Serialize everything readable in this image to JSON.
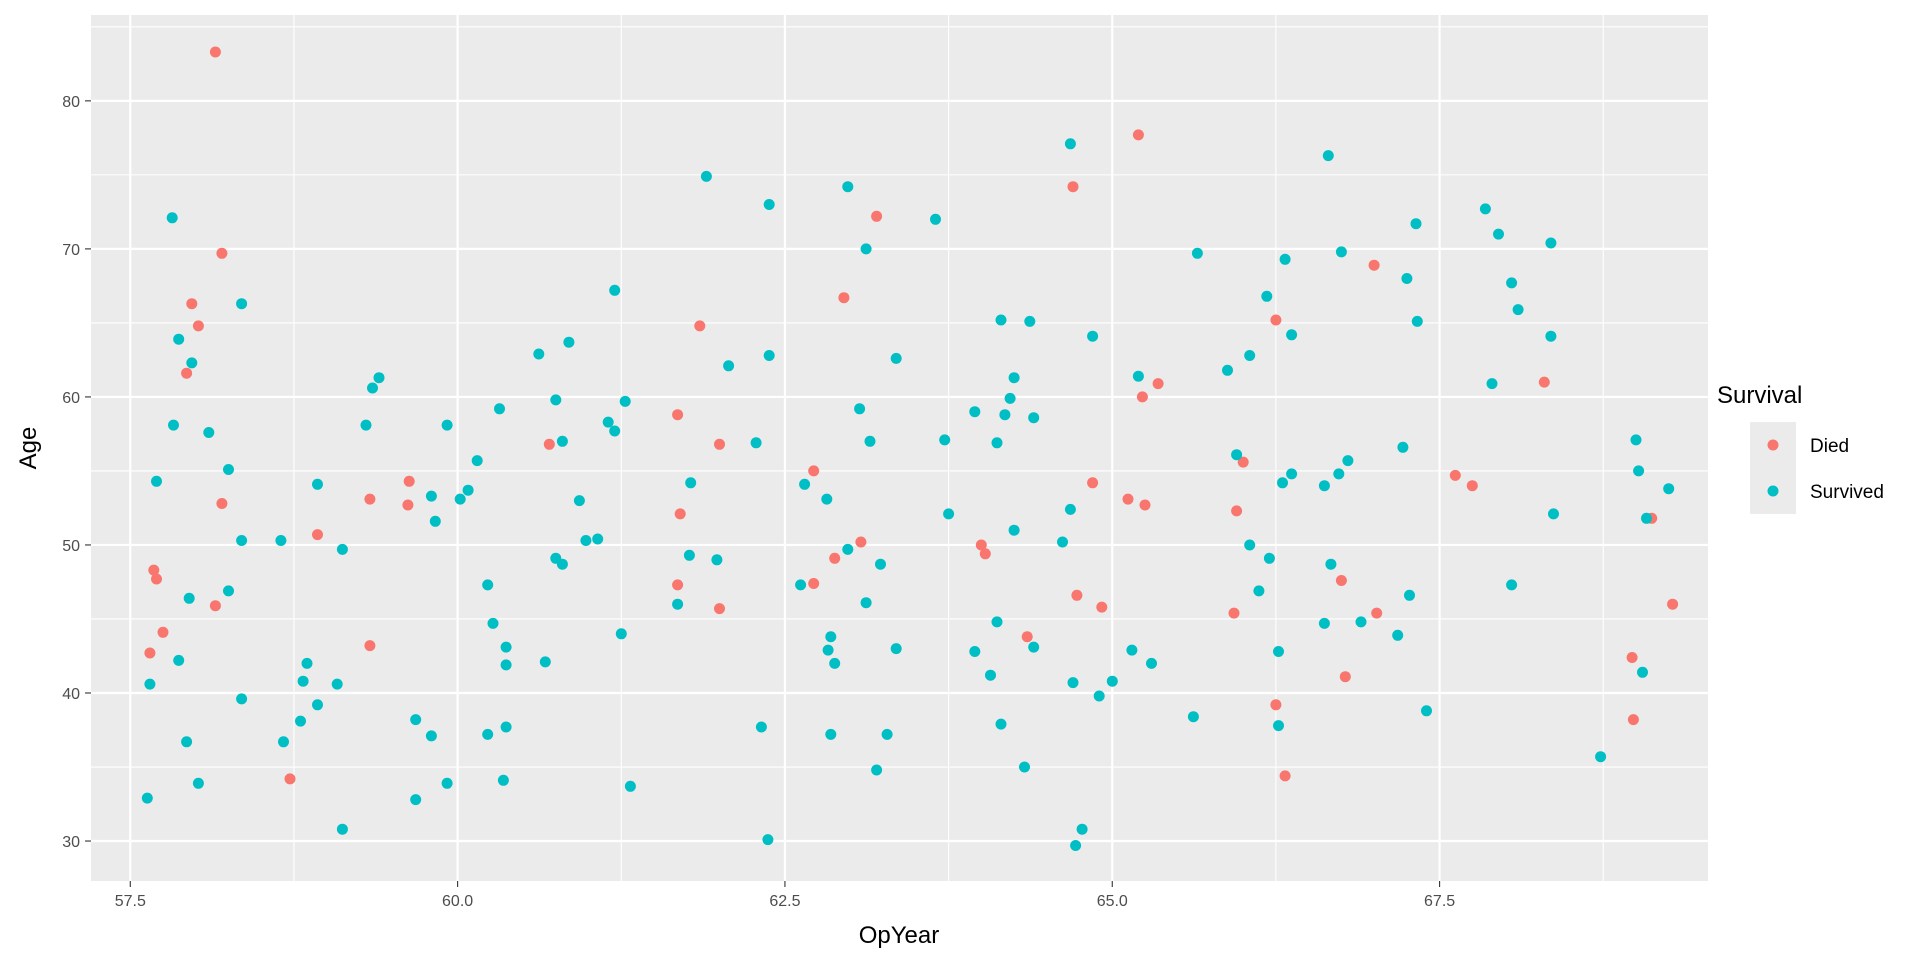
{
  "chart_data": {
    "type": "scatter",
    "xlabel": "OpYear",
    "ylabel": "Age",
    "xlim": [
      57.2,
      69.55
    ],
    "ylim": [
      27.3,
      85.8
    ],
    "x_ticks": [
      57.5,
      60.0,
      62.5,
      65.0,
      67.5
    ],
    "x_tick_labels": [
      "57.5",
      "60.0",
      "62.5",
      "65.0",
      "67.5"
    ],
    "y_ticks": [
      30,
      40,
      50,
      60,
      70,
      80
    ],
    "y_tick_labels": [
      "30",
      "40",
      "50",
      "60",
      "70",
      "80"
    ],
    "grid": true,
    "legend": {
      "title": "Survival",
      "position": "right"
    },
    "series": [
      {
        "name": "Died",
        "color": "#F8766D",
        "points": [
          [
            58.15,
            83.3
          ],
          [
            58.2,
            69.7
          ],
          [
            57.97,
            66.3
          ],
          [
            58.02,
            64.8
          ],
          [
            57.93,
            61.6
          ],
          [
            58.2,
            52.8
          ],
          [
            58.15,
            45.9
          ],
          [
            57.68,
            48.3
          ],
          [
            57.7,
            47.7
          ],
          [
            57.75,
            44.1
          ],
          [
            57.65,
            42.7
          ],
          [
            58.72,
            34.2
          ],
          [
            58.93,
            50.7
          ],
          [
            59.33,
            53.1
          ],
          [
            59.33,
            43.2
          ],
          [
            59.63,
            54.3
          ],
          [
            59.62,
            52.7
          ],
          [
            60.7,
            56.8
          ],
          [
            61.68,
            58.8
          ],
          [
            61.85,
            64.8
          ],
          [
            62.0,
            56.8
          ],
          [
            61.7,
            52.1
          ],
          [
            61.68,
            47.3
          ],
          [
            62.0,
            45.7
          ],
          [
            62.95,
            66.7
          ],
          [
            63.2,
            72.2
          ],
          [
            62.72,
            55.0
          ],
          [
            62.72,
            47.4
          ],
          [
            62.88,
            49.1
          ],
          [
            63.08,
            50.2
          ],
          [
            64.0,
            50.0
          ],
          [
            64.03,
            49.4
          ],
          [
            64.35,
            43.8
          ],
          [
            64.7,
            74.2
          ],
          [
            64.73,
            46.6
          ],
          [
            64.85,
            54.2
          ],
          [
            64.92,
            45.8
          ],
          [
            65.2,
            77.7
          ],
          [
            65.23,
            60.0
          ],
          [
            65.35,
            60.9
          ],
          [
            65.12,
            53.1
          ],
          [
            65.25,
            52.7
          ],
          [
            65.95,
            52.3
          ],
          [
            65.93,
            45.4
          ],
          [
            66.0,
            55.6
          ],
          [
            66.25,
            65.2
          ],
          [
            66.25,
            39.2
          ],
          [
            66.32,
            34.4
          ],
          [
            66.75,
            47.6
          ],
          [
            66.78,
            41.1
          ],
          [
            67.0,
            68.9
          ],
          [
            67.02,
            45.4
          ],
          [
            67.62,
            54.7
          ],
          [
            67.75,
            54.0
          ],
          [
            68.3,
            61.0
          ],
          [
            68.97,
            42.4
          ],
          [
            68.98,
            38.2
          ],
          [
            69.12,
            51.8
          ],
          [
            69.28,
            46.0
          ]
        ]
      },
      {
        "name": "Survived",
        "color": "#00BFC4",
        "points": [
          [
            57.82,
            72.1
          ],
          [
            57.87,
            63.9
          ],
          [
            57.97,
            62.3
          ],
          [
            57.83,
            58.1
          ],
          [
            58.1,
            57.6
          ],
          [
            57.7,
            54.3
          ],
          [
            58.25,
            55.1
          ],
          [
            58.35,
            66.3
          ],
          [
            58.35,
            50.3
          ],
          [
            57.95,
            46.4
          ],
          [
            58.25,
            46.9
          ],
          [
            57.87,
            42.2
          ],
          [
            57.65,
            40.6
          ],
          [
            57.93,
            36.7
          ],
          [
            58.02,
            33.9
          ],
          [
            57.63,
            32.9
          ],
          [
            58.35,
            39.6
          ],
          [
            58.65,
            50.3
          ],
          [
            58.67,
            36.7
          ],
          [
            58.8,
            38.1
          ],
          [
            58.82,
            40.8
          ],
          [
            58.85,
            42.0
          ],
          [
            58.93,
            39.2
          ],
          [
            58.93,
            54.1
          ],
          [
            59.08,
            40.6
          ],
          [
            59.12,
            49.7
          ],
          [
            59.12,
            30.8
          ],
          [
            59.3,
            58.1
          ],
          [
            59.35,
            60.6
          ],
          [
            59.4,
            61.3
          ],
          [
            59.8,
            53.3
          ],
          [
            59.83,
            51.6
          ],
          [
            59.92,
            58.1
          ],
          [
            60.02,
            53.1
          ],
          [
            60.08,
            53.7
          ],
          [
            60.15,
            55.7
          ],
          [
            59.68,
            38.2
          ],
          [
            59.68,
            32.8
          ],
          [
            59.8,
            37.1
          ],
          [
            59.92,
            33.9
          ],
          [
            60.23,
            47.3
          ],
          [
            60.27,
            44.7
          ],
          [
            60.23,
            37.2
          ],
          [
            60.32,
            59.2
          ],
          [
            60.37,
            43.1
          ],
          [
            60.37,
            41.9
          ],
          [
            60.37,
            37.7
          ],
          [
            60.35,
            34.1
          ],
          [
            60.62,
            62.9
          ],
          [
            60.67,
            42.1
          ],
          [
            60.75,
            59.8
          ],
          [
            60.75,
            49.1
          ],
          [
            60.8,
            57.0
          ],
          [
            60.8,
            48.7
          ],
          [
            60.85,
            63.7
          ],
          [
            60.93,
            53.0
          ],
          [
            60.98,
            50.3
          ],
          [
            61.07,
            50.4
          ],
          [
            61.15,
            58.3
          ],
          [
            61.2,
            67.2
          ],
          [
            61.2,
            57.7
          ],
          [
            61.28,
            59.7
          ],
          [
            61.25,
            44.0
          ],
          [
            61.32,
            33.7
          ],
          [
            61.68,
            46.0
          ],
          [
            61.78,
            54.2
          ],
          [
            61.77,
            49.3
          ],
          [
            61.9,
            74.9
          ],
          [
            61.98,
            49.0
          ],
          [
            62.07,
            62.1
          ],
          [
            62.28,
            56.9
          ],
          [
            62.32,
            37.7
          ],
          [
            62.38,
            73.0
          ],
          [
            62.38,
            62.8
          ],
          [
            62.37,
            30.1
          ],
          [
            62.62,
            47.3
          ],
          [
            62.65,
            54.1
          ],
          [
            62.82,
            53.1
          ],
          [
            62.83,
            42.9
          ],
          [
            62.85,
            43.8
          ],
          [
            62.88,
            42.0
          ],
          [
            62.85,
            37.2
          ],
          [
            62.98,
            74.2
          ],
          [
            62.98,
            49.7
          ],
          [
            63.07,
            59.2
          ],
          [
            63.12,
            70.0
          ],
          [
            63.12,
            46.1
          ],
          [
            63.15,
            57.0
          ],
          [
            63.2,
            34.8
          ],
          [
            63.23,
            48.7
          ],
          [
            63.28,
            37.2
          ],
          [
            63.35,
            62.6
          ],
          [
            63.35,
            43.0
          ],
          [
            63.65,
            72.0
          ],
          [
            63.72,
            57.1
          ],
          [
            63.75,
            52.1
          ],
          [
            63.95,
            59.0
          ],
          [
            63.95,
            42.8
          ],
          [
            64.07,
            41.2
          ],
          [
            64.12,
            56.9
          ],
          [
            64.12,
            44.8
          ],
          [
            64.15,
            65.2
          ],
          [
            64.15,
            37.9
          ],
          [
            64.18,
            58.8
          ],
          [
            64.22,
            59.9
          ],
          [
            64.25,
            61.3
          ],
          [
            64.25,
            51.0
          ],
          [
            64.33,
            35.0
          ],
          [
            64.37,
            65.1
          ],
          [
            64.4,
            58.6
          ],
          [
            64.4,
            43.1
          ],
          [
            64.62,
            50.2
          ],
          [
            64.68,
            77.1
          ],
          [
            64.68,
            52.4
          ],
          [
            64.7,
            40.7
          ],
          [
            64.72,
            29.7
          ],
          [
            64.77,
            30.8
          ],
          [
            64.85,
            64.1
          ],
          [
            64.9,
            39.8
          ],
          [
            65.0,
            40.8
          ],
          [
            65.15,
            42.9
          ],
          [
            65.2,
            61.4
          ],
          [
            65.3,
            42.0
          ],
          [
            65.62,
            38.4
          ],
          [
            65.65,
            69.7
          ],
          [
            65.88,
            61.8
          ],
          [
            65.95,
            56.1
          ],
          [
            66.05,
            62.8
          ],
          [
            66.05,
            50.0
          ],
          [
            66.12,
            46.9
          ],
          [
            66.18,
            66.8
          ],
          [
            66.2,
            49.1
          ],
          [
            66.27,
            42.8
          ],
          [
            66.27,
            37.8
          ],
          [
            66.3,
            54.2
          ],
          [
            66.32,
            69.3
          ],
          [
            66.37,
            64.2
          ],
          [
            66.37,
            54.8
          ],
          [
            66.62,
            54.0
          ],
          [
            66.62,
            44.7
          ],
          [
            66.65,
            76.3
          ],
          [
            66.67,
            48.7
          ],
          [
            66.73,
            54.8
          ],
          [
            66.75,
            69.8
          ],
          [
            66.8,
            55.7
          ],
          [
            66.9,
            44.8
          ],
          [
            67.18,
            43.9
          ],
          [
            67.22,
            56.6
          ],
          [
            67.25,
            68.0
          ],
          [
            67.27,
            46.6
          ],
          [
            67.32,
            71.7
          ],
          [
            67.33,
            65.1
          ],
          [
            67.4,
            38.8
          ],
          [
            67.85,
            72.7
          ],
          [
            67.9,
            60.9
          ],
          [
            67.95,
            71.0
          ],
          [
            68.05,
            67.7
          ],
          [
            68.05,
            47.3
          ],
          [
            68.1,
            65.9
          ],
          [
            68.35,
            70.4
          ],
          [
            68.35,
            64.1
          ],
          [
            68.37,
            52.1
          ],
          [
            68.73,
            35.7
          ],
          [
            69.0,
            57.1
          ],
          [
            69.02,
            55.0
          ],
          [
            69.05,
            41.4
          ],
          [
            69.08,
            51.8
          ],
          [
            69.25,
            53.8
          ]
        ]
      }
    ]
  }
}
